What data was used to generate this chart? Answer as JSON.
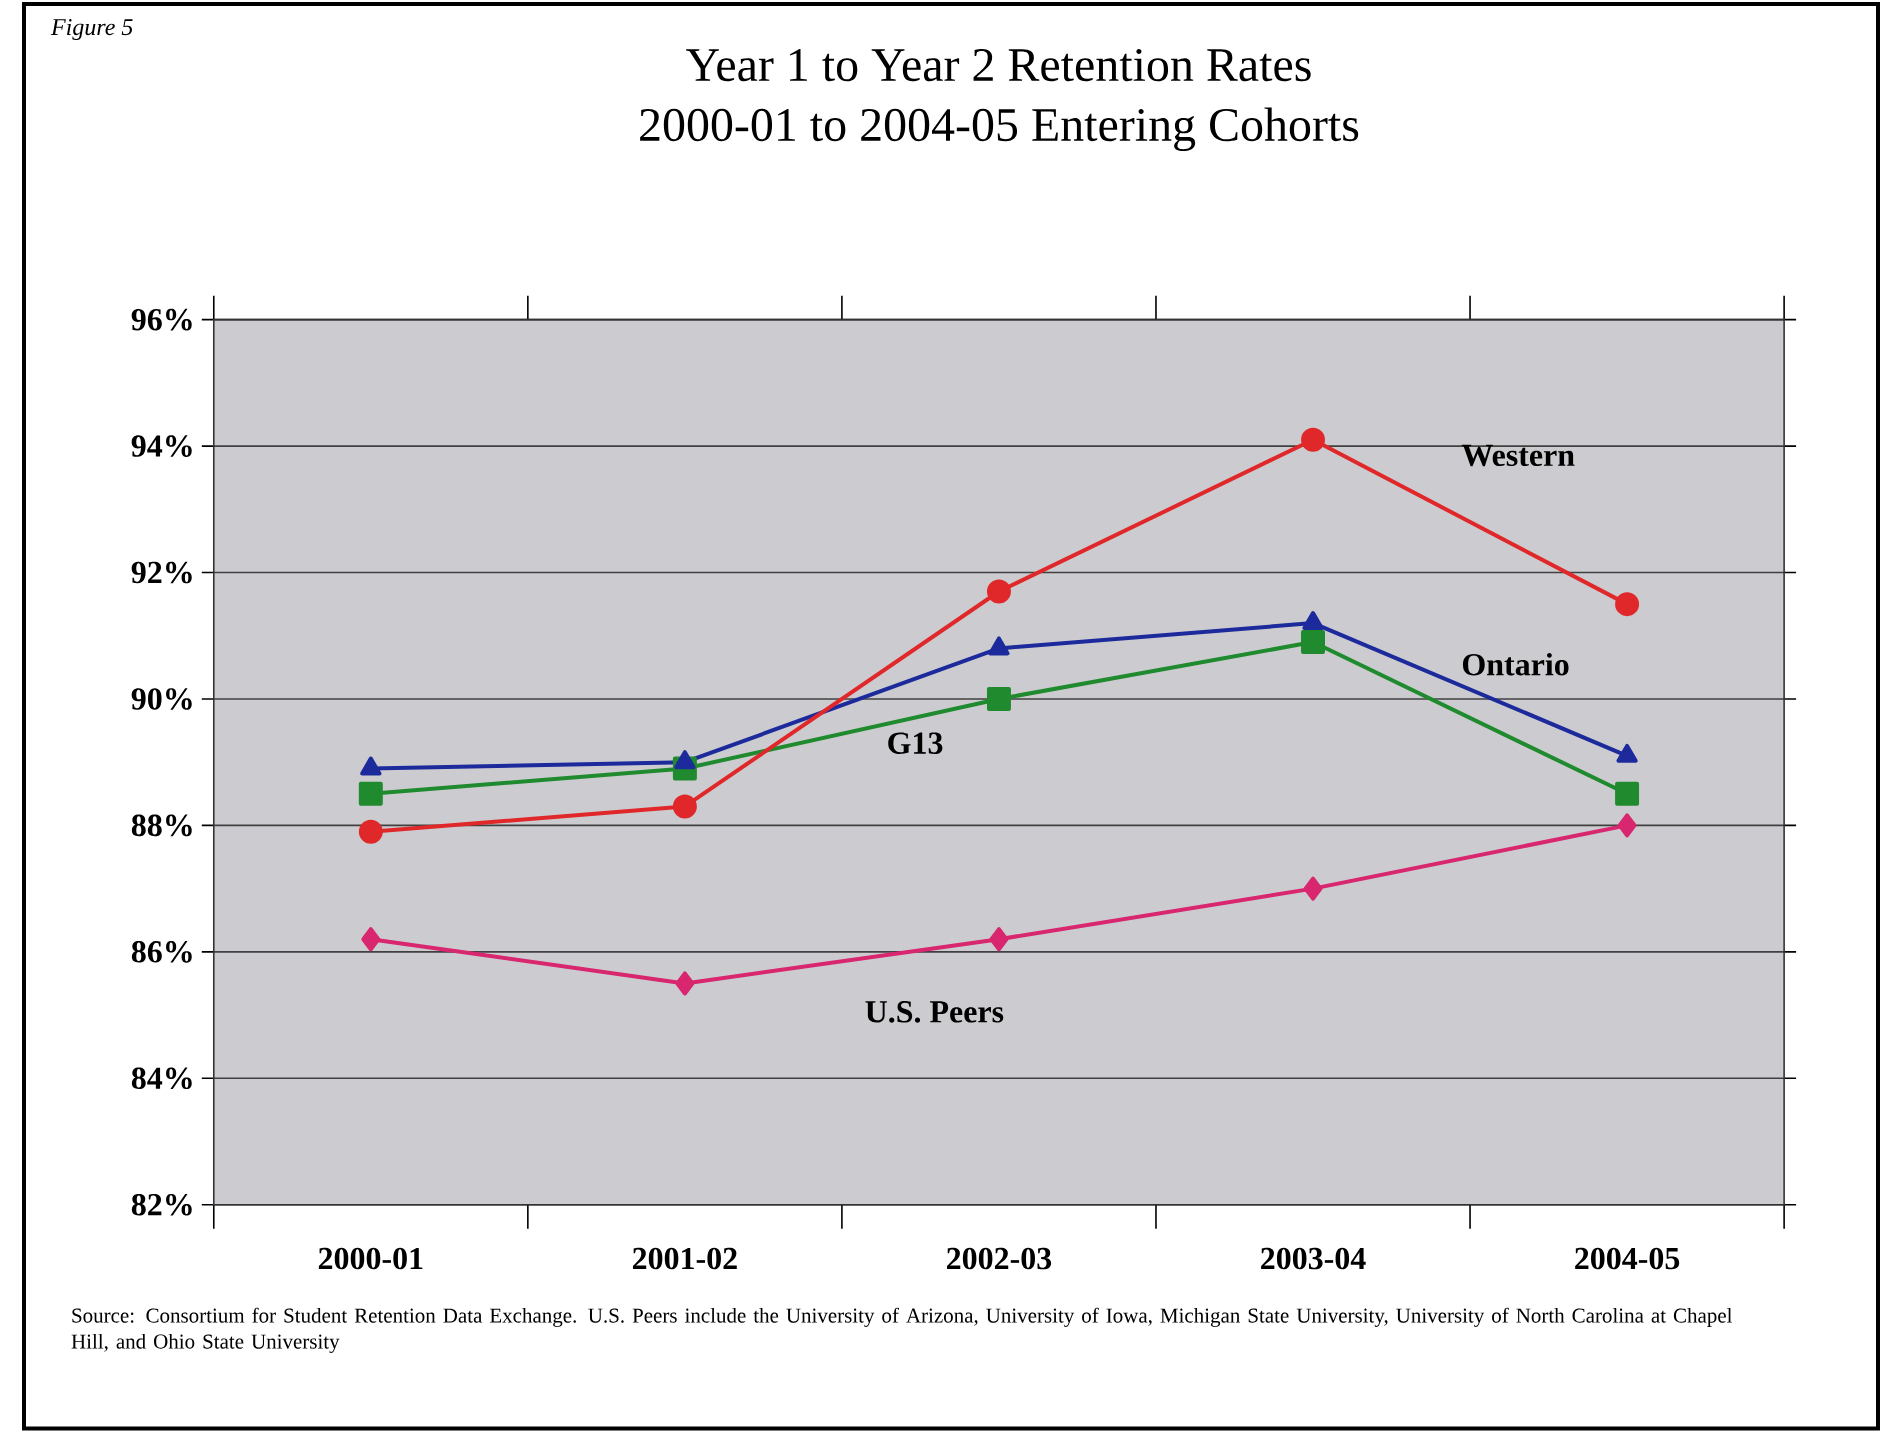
{
  "chart_data": {
    "type": "line",
    "title": "Year 1 to Year 2 Retention Rates",
    "subtitle": "2000-01 to 2004-05 Entering Cohorts",
    "categories": [
      "2000-01",
      "2001-02",
      "2002-03",
      "2003-04",
      "2004-05"
    ],
    "series": [
      {
        "name": "Western",
        "color": "#e0282a",
        "marker": "circle",
        "values": [
          87.9,
          88.3,
          91.7,
          94.1,
          91.5
        ]
      },
      {
        "name": "Ontario",
        "color": "#1c2a9c",
        "marker": "triangle",
        "values": [
          88.9,
          89.0,
          90.8,
          91.2,
          89.1
        ]
      },
      {
        "name": "G13",
        "color": "#1f8a2e",
        "marker": "square",
        "values": [
          88.5,
          88.9,
          90.0,
          90.9,
          88.5
        ]
      },
      {
        "name": "U.S. Peers",
        "color": "#d8266f",
        "marker": "diamond",
        "values": [
          86.2,
          85.5,
          86.2,
          87.0,
          88.0
        ]
      }
    ],
    "ylim": [
      82,
      96
    ],
    "yticks": [
      {
        "value": 82,
        "label": "82%"
      },
      {
        "value": 84,
        "label": "84%"
      },
      {
        "value": 86,
        "label": "86%"
      },
      {
        "value": 88,
        "label": "88%"
      },
      {
        "value": 90,
        "label": "90%"
      },
      {
        "value": 92,
        "label": "92%"
      },
      {
        "value": 94,
        "label": "94%"
      },
      {
        "value": 96,
        "label": "96%"
      }
    ],
    "grid": "y",
    "legend": false,
    "line_style": "solid",
    "annotations": [
      "Figure 5",
      "Source: Consortium for Student Retention Data Exchange.  U.S. Peers include the University of Arizona, University of Iowa, Michigan State University, University of North Carolina at Chapel Hill, and Ohio State University"
    ]
  }
}
